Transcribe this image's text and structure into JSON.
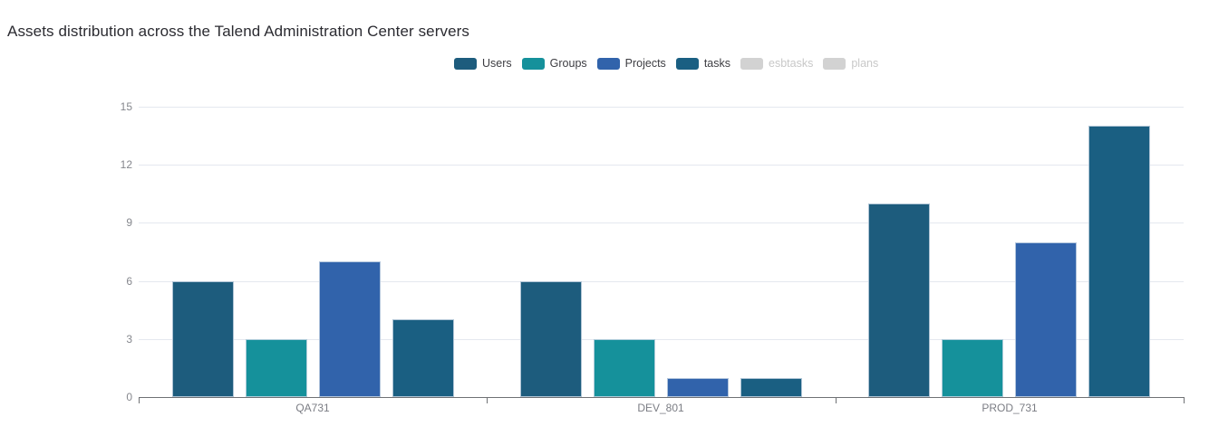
{
  "title": "Assets distribution across the Talend Administration Center servers",
  "chart_data": {
    "type": "bar",
    "title": "Assets distribution across the Talend Administration Center servers",
    "categories": [
      "QA731",
      "DEV_801",
      "PROD_731"
    ],
    "series": [
      {
        "name": "Users",
        "color": "#1d5c7d",
        "enabled": true,
        "values": [
          6,
          6,
          10
        ]
      },
      {
        "name": "Groups",
        "color": "#15919b",
        "enabled": true,
        "values": [
          3,
          3,
          3
        ]
      },
      {
        "name": "Projects",
        "color": "#3163ab",
        "enabled": true,
        "values": [
          7,
          1,
          8
        ]
      },
      {
        "name": "tasks",
        "color": "#1a5f82",
        "enabled": true,
        "values": [
          4,
          1,
          14
        ]
      },
      {
        "name": "esbtasks",
        "color": "#d2d2d2",
        "enabled": false,
        "values": null
      },
      {
        "name": "plans",
        "color": "#d2d2d2",
        "enabled": false,
        "values": null
      }
    ],
    "y_ticks": [
      0,
      3,
      6,
      9,
      12,
      15
    ],
    "ylim": [
      0,
      15
    ],
    "grid": true,
    "legend_position": "top"
  },
  "colors": {
    "grid_line": "#e4e8ef",
    "axis_line": "#6f7174",
    "tick_label": "#85878d",
    "x_label": "#7b7d84",
    "title_text": "#2b2b31",
    "legend_text": "#3d3d42",
    "legend_disabled": "#c8c8c8",
    "legend_disabled_swatch": "#d2d2d2"
  }
}
